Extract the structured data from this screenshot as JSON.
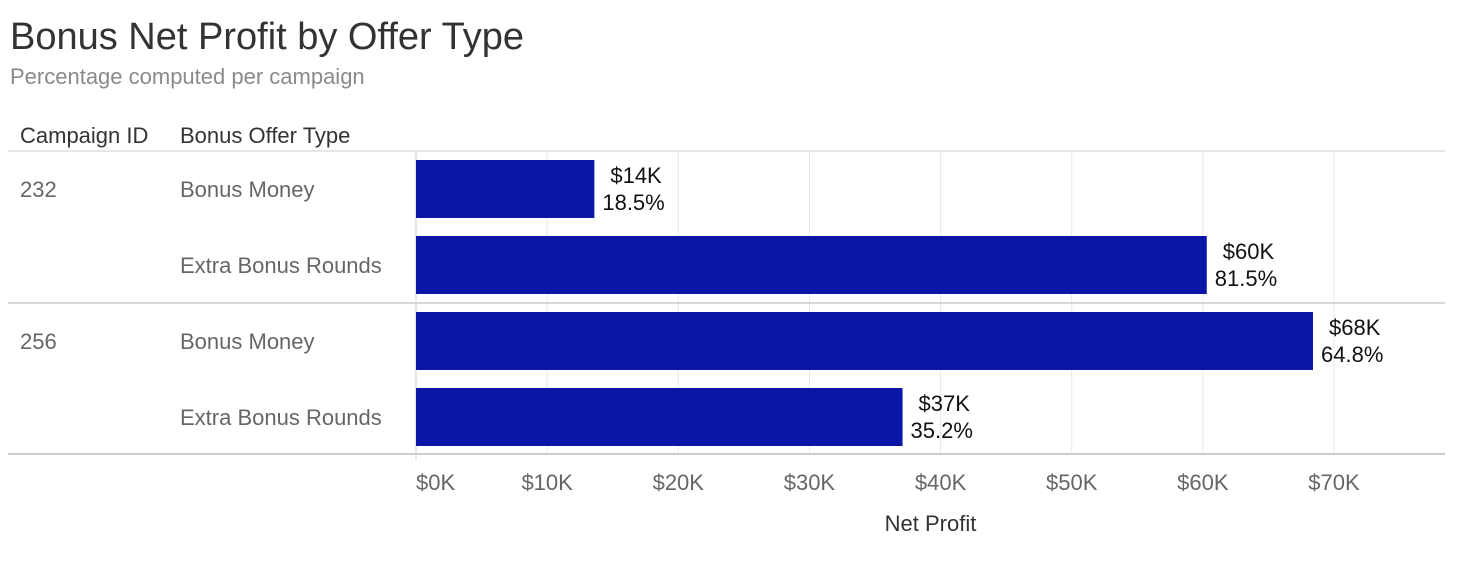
{
  "chart_data": {
    "type": "bar",
    "orientation": "horizontal",
    "title": "Bonus Net Profit by Offer Type",
    "subtitle": "Percentage computed per campaign",
    "row_headers": [
      "Campaign ID",
      "Bonus Offer Type"
    ],
    "xlabel": "Net Profit",
    "xlim": [
      0,
      78000
    ],
    "x_ticks": [
      {
        "value": 0,
        "label": "$0K"
      },
      {
        "value": 10000,
        "label": "$10K"
      },
      {
        "value": 20000,
        "label": "$20K"
      },
      {
        "value": 30000,
        "label": "$30K"
      },
      {
        "value": 40000,
        "label": "$40K"
      },
      {
        "value": 50000,
        "label": "$50K"
      },
      {
        "value": 60000,
        "label": "$60K"
      },
      {
        "value": 70000,
        "label": "$70K"
      }
    ],
    "grid": true,
    "bar_color": "#0a16a6",
    "groups": [
      {
        "campaign_id": "232",
        "rows": [
          {
            "offer_type": "Bonus Money",
            "value": 13600,
            "value_label": "$14K",
            "percent_label": "18.5%"
          },
          {
            "offer_type": "Extra Bonus Rounds",
            "value": 60300,
            "value_label": "$60K",
            "percent_label": "81.5%"
          }
        ]
      },
      {
        "campaign_id": "256",
        "rows": [
          {
            "offer_type": "Bonus Money",
            "value": 68400,
            "value_label": "$68K",
            "percent_label": "64.8%"
          },
          {
            "offer_type": "Extra Bonus Rounds",
            "value": 37100,
            "value_label": "$37K",
            "percent_label": "35.2%"
          }
        ]
      }
    ]
  }
}
